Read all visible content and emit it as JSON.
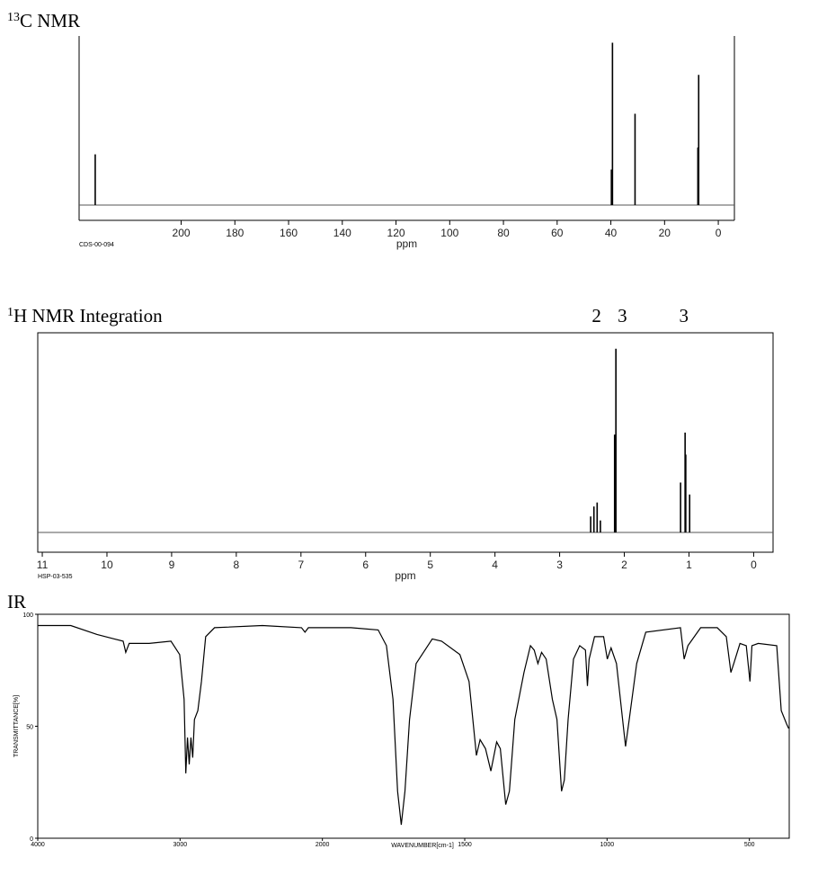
{
  "chart_data": [
    {
      "type": "stem",
      "title_sup": "13",
      "title": "C NMR",
      "code": "CDS-00-094",
      "x_label": "ppm",
      "xlim": [
        238,
        -6
      ],
      "xticks": [
        200,
        180,
        160,
        140,
        120,
        100,
        80,
        60,
        40,
        20,
        0
      ],
      "ylim": [
        0,
        100
      ],
      "color": "#000000",
      "x": [
        232,
        39.8,
        39.4,
        31,
        7.6,
        7.3
      ],
      "values": [
        30,
        21,
        96,
        54,
        34,
        77
      ]
    },
    {
      "type": "stem",
      "title_sup": "1",
      "title": "H NMR Integration",
      "code": "HSP-03-535",
      "x_label": "ppm",
      "xlim": [
        11.07,
        -0.3
      ],
      "xticks": [
        11,
        10,
        9,
        8,
        7,
        6,
        5,
        4,
        3,
        2,
        1,
        0
      ],
      "ylim": [
        0,
        100
      ],
      "color": "#000000",
      "x": [
        2.52,
        2.47,
        2.42,
        2.37,
        2.15,
        2.13,
        1.13,
        1.06,
        1.05,
        0.99
      ],
      "values": [
        8,
        13,
        15,
        6,
        49,
        92,
        25,
        50,
        39,
        19
      ],
      "integrations": [
        {
          "text": "2",
          "x": 2.43
        },
        {
          "text": "3",
          "x": 2.03
        },
        {
          "text": "3",
          "x": 1.08
        }
      ]
    },
    {
      "type": "line",
      "title": "IR",
      "x_label": "WAVENUMBER[cm-1]",
      "y_label": "TRANSMITTANCE[%]",
      "xlim": [
        4000,
        360
      ],
      "x_break": 2000,
      "x_break_scale": 2,
      "xticks": [
        4000,
        3000,
        2000,
        1500,
        1000,
        500
      ],
      "ylim": [
        0,
        100
      ],
      "yticks": [
        0,
        50,
        100
      ],
      "color": "#000000",
      "x": [
        4000,
        3768,
        3584,
        3462,
        3400,
        3382,
        3358,
        3217,
        3064,
        3003,
        2972,
        2960,
        2948,
        2936,
        2924,
        2911,
        2899,
        2875,
        2850,
        2820,
        2758,
        2422,
        2147,
        2122,
        2098,
        1900,
        1804,
        1775,
        1752,
        1736,
        1723,
        1710,
        1694,
        1671,
        1614,
        1581,
        1517,
        1485,
        1459,
        1446,
        1427,
        1408,
        1388,
        1375,
        1356,
        1343,
        1324,
        1292,
        1269,
        1256,
        1243,
        1230,
        1214,
        1192,
        1176,
        1160,
        1150,
        1137,
        1118,
        1096,
        1076,
        1069,
        1063,
        1044,
        1012,
        999,
        986,
        967,
        935,
        922,
        896,
        864,
        742,
        729,
        716,
        671,
        613,
        581,
        565,
        555,
        533,
        511,
        498,
        491,
        469,
        404,
        388,
        369,
        362
      ],
      "values": [
        95,
        95,
        91,
        89,
        88,
        83,
        87,
        87,
        88,
        82,
        62,
        29,
        45,
        33,
        45,
        36,
        53,
        57,
        70,
        90,
        94,
        95,
        94,
        92,
        94,
        94,
        93,
        86,
        62,
        21,
        6,
        21,
        53,
        78,
        89,
        88,
        82,
        70,
        37,
        44,
        40,
        30,
        43,
        40,
        15,
        21,
        53,
        74,
        86,
        84,
        78,
        83,
        80,
        62,
        53,
        21,
        26,
        53,
        80,
        86,
        84,
        68,
        80,
        90,
        90,
        80,
        85,
        78,
        41,
        53,
        78,
        92,
        94,
        80,
        86,
        94,
        94,
        90,
        74,
        78,
        87,
        86,
        70,
        86,
        87,
        86,
        57,
        51,
        49
      ]
    }
  ]
}
